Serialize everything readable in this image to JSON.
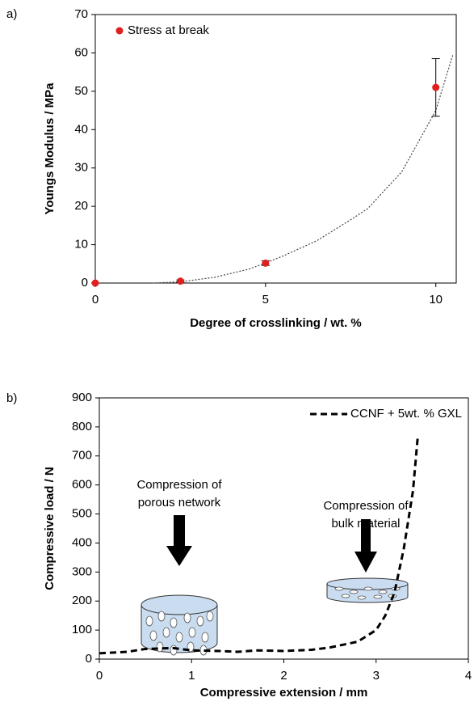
{
  "chart_data": [
    {
      "type": "scatter",
      "panel_label": "a)",
      "x_label": "Degree of crosslinking / wt. %",
      "y_label": "Youngs Modulus / MPa",
      "xlim": [
        0,
        10.6
      ],
      "xticks": [
        0,
        5,
        10
      ],
      "ylim": [
        0,
        70
      ],
      "yticks": [
        0,
        10,
        20,
        30,
        40,
        50,
        60,
        70
      ],
      "legend": "upper left",
      "series": [
        {
          "name": "Stress at break",
          "color": "#e02020",
          "x": [
            0,
            2.5,
            5,
            10
          ],
          "values": [
            0,
            0.5,
            5.2,
            51
          ],
          "errors": [
            0,
            0.3,
            0.6,
            7.5
          ]
        }
      ],
      "trendline": {
        "style": "dotted",
        "color": "#444",
        "x": [
          1.7,
          2.5,
          3.5,
          4.5,
          5,
          5.5,
          6.5,
          7.5,
          8,
          9,
          10,
          10.5
        ],
        "values": [
          0,
          0.3,
          1.5,
          3.6,
          5.2,
          7,
          11,
          16.5,
          19.4,
          29,
          45,
          59.5
        ]
      }
    },
    {
      "type": "line",
      "panel_label": "b)",
      "x_label": "Compressive extension / mm",
      "y_label": "Compressive load / N",
      "xlim": [
        0,
        4
      ],
      "xticks": [
        0,
        1,
        2,
        3,
        4
      ],
      "ylim": [
        0,
        900
      ],
      "yticks": [
        0,
        100,
        200,
        300,
        400,
        500,
        600,
        700,
        800,
        900
      ],
      "legend": "upper right",
      "annotations": [
        [
          "Compression of",
          "porous network"
        ],
        [
          "Compression of",
          "bulk material"
        ]
      ],
      "series": [
        {
          "name": "CCNF + 5wt. % GXL",
          "color": "#000000",
          "style": "dashed",
          "x": [
            0,
            0.3,
            0.5,
            0.8,
            1,
            1.3,
            1.5,
            1.7,
            2,
            2.3,
            2.5,
            2.8,
            3,
            3.1,
            3.2,
            3.3,
            3.4,
            3.45
          ],
          "values": [
            20,
            25,
            35,
            38,
            30,
            28,
            25,
            30,
            28,
            32,
            40,
            60,
            100,
            150,
            230,
            380,
            580,
            760
          ]
        }
      ]
    }
  ]
}
